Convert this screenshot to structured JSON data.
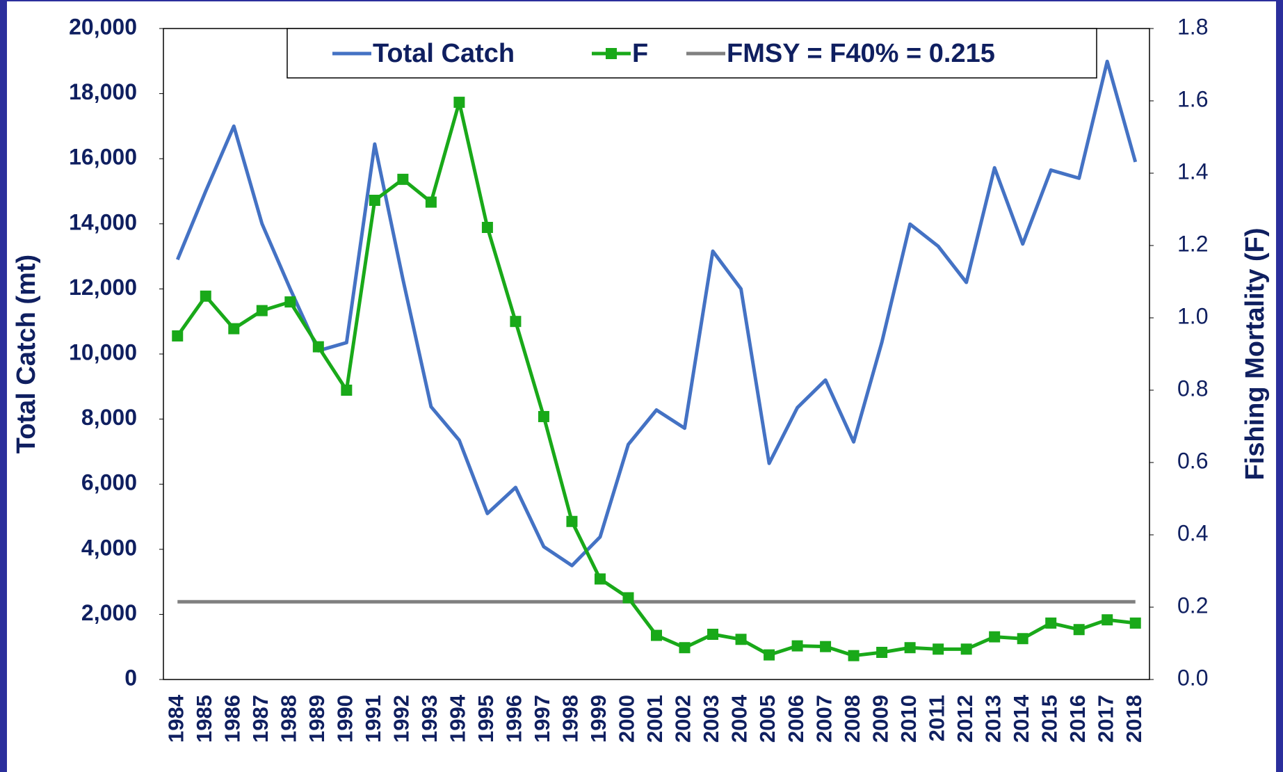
{
  "chart_data": {
    "type": "line",
    "categories": [
      "1984",
      "1985",
      "1986",
      "1987",
      "1988",
      "1989",
      "1990",
      "1991",
      "1992",
      "1993",
      "1994",
      "1995",
      "1996",
      "1997",
      "1998",
      "1999",
      "2000",
      "2001",
      "2002",
      "2003",
      "2004",
      "2005",
      "2006",
      "2007",
      "2008",
      "2009",
      "2010",
      "2011",
      "2012",
      "2013",
      "2014",
      "2015",
      "2016",
      "2017",
      "2018"
    ],
    "series": [
      {
        "name": "Total Catch",
        "color": "#4472c4",
        "axis": "y",
        "marker": false,
        "values": [
          12900,
          15000,
          17000,
          14000,
          12000,
          10100,
          10350,
          16450,
          12300,
          8380,
          7350,
          5100,
          5900,
          4080,
          3500,
          4380,
          7220,
          8280,
          7720,
          13160,
          12000,
          6640,
          8350,
          9200,
          7300,
          10360,
          13990,
          13310,
          12200,
          15720,
          13380,
          15650,
          15400,
          18990,
          15900
        ]
      },
      {
        "name": "F",
        "color": "#19a919",
        "axis": "y2",
        "marker": true,
        "values": [
          0.95,
          1.06,
          0.97,
          1.02,
          1.044,
          0.92,
          0.8,
          1.325,
          1.383,
          1.32,
          1.596,
          1.25,
          0.99,
          0.727,
          0.437,
          0.278,
          0.226,
          0.122,
          0.088,
          0.125,
          0.111,
          0.068,
          0.093,
          0.091,
          0.066,
          0.075,
          0.088,
          0.084,
          0.084,
          0.118,
          0.113,
          0.156,
          0.138,
          0.165,
          0.156
        ]
      },
      {
        "name": "FMSY = F40% = 0.215",
        "color": "#808080",
        "axis": "y2",
        "marker": false,
        "values": [
          0.215,
          0.215,
          0.215,
          0.215,
          0.215,
          0.215,
          0.215,
          0.215,
          0.215,
          0.215,
          0.215,
          0.215,
          0.215,
          0.215,
          0.215,
          0.215,
          0.215,
          0.215,
          0.215,
          0.215,
          0.215,
          0.215,
          0.215,
          0.215,
          0.215,
          0.215,
          0.215,
          0.215,
          0.215,
          0.215,
          0.215,
          0.215,
          0.215,
          0.215,
          0.215
        ]
      }
    ],
    "ylabel": "Total Catch (mt)",
    "y2label": "Fishing Mortality (F)",
    "ylim": [
      0,
      20000
    ],
    "yticks": [
      0,
      {
        "value": 2000,
        "label": "2,000"
      },
      {
        "value": 4000,
        "label": "4,000"
      },
      {
        "value": 6000,
        "label": "6,000"
      },
      {
        "value": 8000,
        "label": "8,000"
      },
      {
        "value": 10000,
        "label": "10,000"
      },
      {
        "value": 12000,
        "label": "12,000"
      },
      {
        "value": 14000,
        "label": "14,000"
      },
      {
        "value": 16000,
        "label": "16,000"
      },
      {
        "value": 18000,
        "label": "18,000"
      },
      {
        "value": 20000,
        "label": "20,000"
      }
    ],
    "y2lim": [
      0,
      1.8
    ],
    "y2ticks": [
      {
        "value": 0,
        "label": "0.0"
      },
      0.2,
      0.4,
      0.6,
      0.8,
      {
        "value": 1,
        "label": "1.0"
      },
      1.2,
      1.4,
      1.6,
      1.8
    ],
    "legend": "top",
    "grid": false
  }
}
